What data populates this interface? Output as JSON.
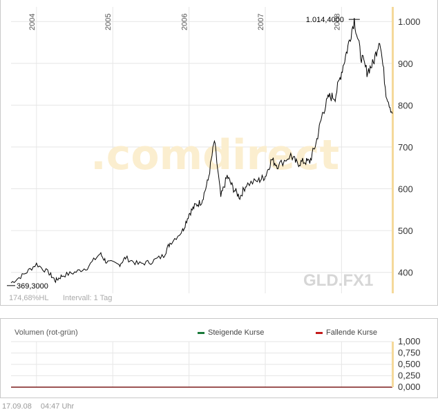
{
  "chart_data": [
    {
      "type": "line",
      "ticker": "GLD.FX1",
      "watermark": ".comdirect",
      "x_axis": {
        "ticks": [
          "2004",
          "2005",
          "2006",
          "2007",
          "2008"
        ]
      },
      "y_axis": {
        "ticks": [
          400,
          500,
          600,
          700,
          800,
          900,
          "1.000"
        ],
        "ylim": [
          350,
          1035
        ]
      },
      "grid": true,
      "annotations": {
        "max_label": "1.014,4000",
        "min_label": "369,3000"
      },
      "info": {
        "range_pct": "174,68%HL",
        "interval": "Intervall: 1 Tag"
      },
      "x": [
        "2003-09",
        "2003-11",
        "2004-01",
        "2004-03",
        "2004-04",
        "2004-05",
        "2004-07",
        "2004-09",
        "2004-11",
        "2004-12",
        "2005-02",
        "2005-03",
        "2005-05",
        "2005-07",
        "2005-09",
        "2005-10",
        "2005-12",
        "2006-01",
        "2006-02",
        "2006-03",
        "2006-04",
        "2006-05",
        "2006-06",
        "2006-07",
        "2006-08",
        "2006-09",
        "2006-10",
        "2006-12",
        "2007-01",
        "2007-02",
        "2007-03",
        "2007-05",
        "2007-06",
        "2007-07",
        "2007-08",
        "2007-09",
        "2007-10",
        "2007-11",
        "2007-12",
        "2008-01",
        "2008-02",
        "2008-03",
        "2008-04",
        "2008-05",
        "2008-06",
        "2008-07",
        "2008-08",
        "2008-09"
      ],
      "values": [
        375,
        395,
        420,
        398,
        380,
        392,
        400,
        412,
        445,
        425,
        418,
        435,
        420,
        425,
        440,
        470,
        500,
        540,
        560,
        570,
        620,
        715,
        580,
        630,
        600,
        580,
        610,
        620,
        630,
        670,
        655,
        680,
        660,
        665,
        665,
        710,
        780,
        820,
        820,
        880,
        940,
        1005,
        920,
        880,
        900,
        960,
        830,
        780
      ]
    },
    {
      "type": "bar",
      "title": "Volumen (rot-grün)",
      "legend": [
        {
          "label": "Steigende Kurse",
          "color": "#1a7a3a"
        },
        {
          "label": "Fallende Kurse",
          "color": "#c41a1a"
        }
      ],
      "y_axis": {
        "ticks": [
          "1,000",
          "0,750",
          "0,500",
          "0,250",
          "0,000"
        ],
        "ylim": [
          0,
          1
        ]
      },
      "values": []
    }
  ],
  "footer": {
    "date": "17.09.08",
    "time": "04:47 Uhr"
  },
  "colors": {
    "highlight": "#f5d99a",
    "line": "#000000",
    "grid": "#e6e6e6"
  }
}
